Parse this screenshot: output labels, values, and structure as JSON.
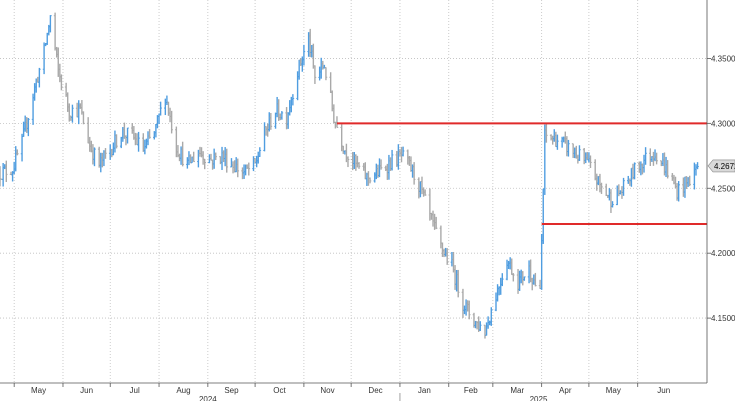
{
  "chart_data": {
    "type": "ohlc",
    "colors": {
      "up": "#4f9de0",
      "down": "#a9a9a9",
      "level_lines": "#e02a2a",
      "grid": "#bfbfbf",
      "last_value_box": "#d9d9d9"
    },
    "y_axis": {
      "range": [
        4.1,
        4.395
      ],
      "ticks": [
        "4.1500",
        "4.2000",
        "4.2500",
        "4.3000",
        "4.3500"
      ],
      "tick_values": [
        4.15,
        4.2,
        4.25,
        4.3,
        4.35
      ],
      "position": "right"
    },
    "x_axis": {
      "month_labels": [
        "May",
        "Jun",
        "Jul",
        "Aug",
        "Sep",
        "Oct",
        "Nov",
        "Dec",
        "Jan",
        "Feb",
        "Mar",
        "Apr",
        "May",
        "Jun"
      ],
      "year_labels": [
        "2024",
        "2025"
      ],
      "grid": "dotted"
    },
    "last_value": "4.2672",
    "horizontal_levels": [
      {
        "y": 4.3,
        "from": "2024-11-22",
        "to": "2025-07-15"
      },
      {
        "y": 4.2225,
        "from": "2025-04-01",
        "to": "2025-07-15"
      }
    ],
    "trend_anchors": [
      [
        "2024-04-22",
        4.262
      ],
      [
        "2024-04-30",
        4.265
      ],
      [
        "2024-05-06",
        4.285
      ],
      [
        "2024-05-13",
        4.322
      ],
      [
        "2024-05-20",
        4.355
      ],
      [
        "2024-05-24",
        4.382
      ],
      [
        "2024-05-29",
        4.34
      ],
      [
        "2024-06-05",
        4.31
      ],
      [
        "2024-06-12",
        4.31
      ],
      [
        "2024-06-18",
        4.283
      ],
      [
        "2024-06-24",
        4.268
      ],
      [
        "2024-07-01",
        4.28
      ],
      [
        "2024-07-08",
        4.293
      ],
      [
        "2024-07-15",
        4.29
      ],
      [
        "2024-07-22",
        4.28
      ],
      [
        "2024-07-29",
        4.292
      ],
      [
        "2024-08-05",
        4.322
      ],
      [
        "2024-08-12",
        4.282
      ],
      [
        "2024-08-19",
        4.268
      ],
      [
        "2024-08-26",
        4.278
      ],
      [
        "2024-09-03",
        4.272
      ],
      [
        "2024-09-10",
        4.275
      ],
      [
        "2024-09-17",
        4.268
      ],
      [
        "2024-09-24",
        4.262
      ],
      [
        "2024-10-01",
        4.268
      ],
      [
        "2024-10-07",
        4.292
      ],
      [
        "2024-10-14",
        4.31
      ],
      [
        "2024-10-21",
        4.305
      ],
      [
        "2024-10-28",
        4.34
      ],
      [
        "2024-11-04",
        4.365
      ],
      [
        "2024-11-08",
        4.335
      ],
      [
        "2024-11-14",
        4.345
      ],
      [
        "2024-11-20",
        4.305
      ],
      [
        "2024-11-27",
        4.28
      ],
      [
        "2024-12-04",
        4.268
      ],
      [
        "2024-12-11",
        4.258
      ],
      [
        "2024-12-18",
        4.262
      ],
      [
        "2024-12-26",
        4.27
      ],
      [
        "2025-01-02",
        4.275
      ],
      [
        "2025-01-08",
        4.265
      ],
      [
        "2025-01-14",
        4.25
      ],
      [
        "2025-01-20",
        4.228
      ],
      [
        "2025-01-27",
        4.205
      ],
      [
        "2025-02-03",
        4.19
      ],
      [
        "2025-02-10",
        4.162
      ],
      [
        "2025-02-17",
        4.148
      ],
      [
        "2025-02-24",
        4.14
      ],
      [
        "2025-03-03",
        4.168
      ],
      [
        "2025-03-10",
        4.195
      ],
      [
        "2025-03-17",
        4.178
      ],
      [
        "2025-03-24",
        4.188
      ],
      [
        "2025-03-31",
        4.168
      ],
      [
        "2025-04-03",
        4.29
      ],
      [
        "2025-04-10",
        4.288
      ],
      [
        "2025-04-17",
        4.282
      ],
      [
        "2025-04-24",
        4.275
      ],
      [
        "2025-05-01",
        4.268
      ],
      [
        "2025-05-08",
        4.252
      ],
      [
        "2025-05-15",
        4.242
      ],
      [
        "2025-05-22",
        4.248
      ],
      [
        "2025-05-29",
        4.262
      ],
      [
        "2025-06-05",
        4.272
      ],
      [
        "2025-06-12",
        4.278
      ],
      [
        "2025-06-19",
        4.265
      ],
      [
        "2025-06-26",
        4.248
      ],
      [
        "2025-07-03",
        4.255
      ],
      [
        "2025-07-09",
        4.2672
      ]
    ]
  }
}
